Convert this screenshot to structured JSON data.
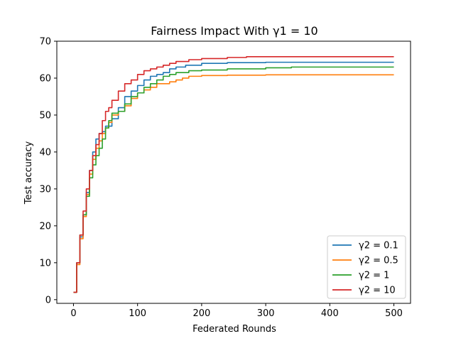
{
  "chart_data": {
    "type": "line",
    "title": "Fairness Impact With γ1 = 10",
    "xlabel": "Federated Rounds",
    "ylabel": "Test accuracy",
    "xlim": [
      -26,
      526
    ],
    "ylim": [
      -1,
      70
    ],
    "xticks": [
      0,
      100,
      200,
      300,
      400,
      500
    ],
    "yticks": [
      0,
      10,
      20,
      30,
      40,
      50,
      60,
      70
    ],
    "grid": false,
    "legend_position": "lower right",
    "series": [
      {
        "name": "γ2 = 0.1",
        "color": "#1f77b4",
        "points": [
          [
            0,
            2
          ],
          [
            5,
            10
          ],
          [
            10,
            17
          ],
          [
            15,
            23
          ],
          [
            20,
            29
          ],
          [
            25,
            35
          ],
          [
            30,
            40
          ],
          [
            35,
            43.5
          ],
          [
            40,
            45
          ],
          [
            45,
            45.5
          ],
          [
            50,
            47
          ],
          [
            60,
            49
          ],
          [
            70,
            52
          ],
          [
            80,
            55
          ],
          [
            90,
            56.5
          ],
          [
            100,
            58
          ],
          [
            110,
            59.5
          ],
          [
            120,
            60.5
          ],
          [
            130,
            61
          ],
          [
            140,
            61.5
          ],
          [
            150,
            62.5
          ],
          [
            160,
            63
          ],
          [
            175,
            63.5
          ],
          [
            200,
            64
          ],
          [
            240,
            64.2
          ],
          [
            300,
            64.3
          ],
          [
            500,
            64.3
          ]
        ]
      },
      {
        "name": "γ2 = 0.5",
        "color": "#ff7f0e",
        "points": [
          [
            0,
            2
          ],
          [
            5,
            9.5
          ],
          [
            10,
            16.5
          ],
          [
            15,
            22.5
          ],
          [
            20,
            28.5
          ],
          [
            25,
            34
          ],
          [
            30,
            38
          ],
          [
            35,
            41
          ],
          [
            40,
            43
          ],
          [
            45,
            45
          ],
          [
            50,
            46.5
          ],
          [
            55,
            48
          ],
          [
            60,
            50
          ],
          [
            70,
            51
          ],
          [
            80,
            52.5
          ],
          [
            90,
            54.5
          ],
          [
            100,
            56
          ],
          [
            110,
            56.8
          ],
          [
            120,
            57.5
          ],
          [
            130,
            58.5
          ],
          [
            150,
            59
          ],
          [
            160,
            59.5
          ],
          [
            170,
            60
          ],
          [
            180,
            60.5
          ],
          [
            200,
            60.7
          ],
          [
            240,
            60.8
          ],
          [
            300,
            60.9
          ],
          [
            500,
            60.9
          ]
        ]
      },
      {
        "name": "γ2 = 1",
        "color": "#2ca02c",
        "points": [
          [
            0,
            2
          ],
          [
            5,
            10
          ],
          [
            10,
            17.5
          ],
          [
            15,
            23
          ],
          [
            20,
            28
          ],
          [
            25,
            33
          ],
          [
            30,
            36.5
          ],
          [
            35,
            39
          ],
          [
            40,
            41
          ],
          [
            45,
            43.5
          ],
          [
            50,
            46.5
          ],
          [
            55,
            48.5
          ],
          [
            60,
            50.5
          ],
          [
            70,
            51
          ],
          [
            80,
            53
          ],
          [
            90,
            55
          ],
          [
            100,
            56
          ],
          [
            110,
            57.5
          ],
          [
            120,
            58.5
          ],
          [
            130,
            59.5
          ],
          [
            140,
            60.5
          ],
          [
            150,
            61
          ],
          [
            160,
            61.5
          ],
          [
            180,
            62
          ],
          [
            200,
            62.2
          ],
          [
            240,
            62.5
          ],
          [
            300,
            62.8
          ],
          [
            340,
            63
          ],
          [
            500,
            63
          ]
        ]
      },
      {
        "name": "γ2 = 10",
        "color": "#d62728",
        "points": [
          [
            0,
            2
          ],
          [
            5,
            10
          ],
          [
            10,
            17.5
          ],
          [
            15,
            24
          ],
          [
            20,
            30
          ],
          [
            25,
            35
          ],
          [
            30,
            39
          ],
          [
            35,
            42
          ],
          [
            40,
            45
          ],
          [
            45,
            48.5
          ],
          [
            50,
            51
          ],
          [
            55,
            52
          ],
          [
            60,
            54
          ],
          [
            70,
            56.5
          ],
          [
            80,
            58.5
          ],
          [
            90,
            59.5
          ],
          [
            100,
            61
          ],
          [
            110,
            62
          ],
          [
            120,
            62.5
          ],
          [
            130,
            63
          ],
          [
            140,
            63.5
          ],
          [
            150,
            64
          ],
          [
            160,
            64.5
          ],
          [
            180,
            65
          ],
          [
            200,
            65.3
          ],
          [
            240,
            65.6
          ],
          [
            270,
            65.8
          ],
          [
            500,
            65.8
          ]
        ]
      }
    ]
  }
}
